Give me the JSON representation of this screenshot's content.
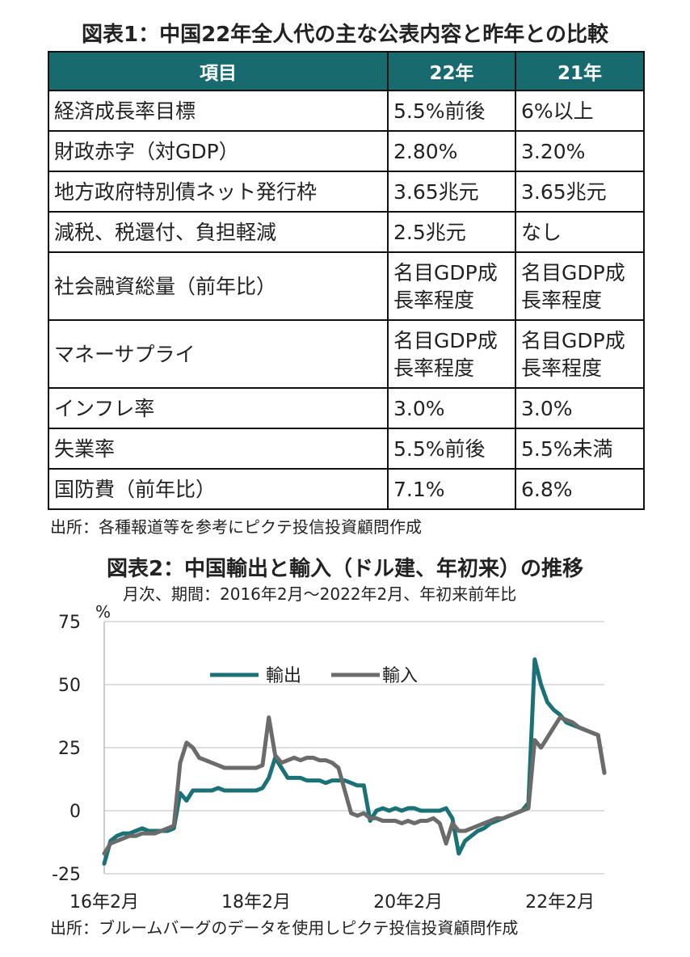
{
  "table": {
    "title": "図表1：中国22年全人代の主な公表内容と昨年との比較",
    "headers": [
      "項目",
      "22年",
      "21年"
    ],
    "rows": [
      [
        "経済成長率目標",
        "5.5%前後",
        "6%以上"
      ],
      [
        "財政赤字（対GDP）",
        "2.80%",
        "3.20%"
      ],
      [
        "地方政府特別債ネット発行枠",
        "3.65兆元",
        "3.65兆元"
      ],
      [
        "減税、税還付、負担軽減",
        "2.5兆元",
        "なし"
      ],
      [
        "社会融資総量（前年比）",
        "名目GDP成長率程度",
        "名目GDP成長率程度"
      ],
      [
        "マネーサプライ",
        "名目GDP成長率程度",
        "名目GDP成長率程度"
      ],
      [
        "インフレ率",
        "3.0%",
        "3.0%"
      ],
      [
        "失業率",
        "5.5%前後",
        "5.5%未満"
      ],
      [
        "国防費（前年比）",
        "7.1%",
        "6.8%"
      ]
    ],
    "source": "出所：各種報道等を参考にピクテ投信投資顧問作成"
  },
  "chart_data": {
    "type": "line",
    "title": "図表2：中国輸出と輸入（ドル建、年初来）の推移",
    "subtitle": "月次、期間：2016年2月～2022年2月、年初来前年比",
    "ylabel": "%",
    "ylim": [
      -25,
      75
    ],
    "yticks": [
      "75",
      "50",
      "25",
      "0",
      "-25"
    ],
    "xticks": [
      "16年2月",
      "18年2月",
      "20年2月",
      "22年2月"
    ],
    "grid": true,
    "legend_position": "top-center",
    "source": "出所：ブルームバーグのデータを使用しピクテ投信投資顧問作成",
    "series": [
      {
        "name": "輸出",
        "color": "#1b7276",
        "values": [
          -21,
          -12,
          -10,
          -9,
          -9,
          -8,
          -7,
          -8,
          -8,
          -8,
          -8,
          -7,
          7,
          4,
          8,
          8,
          8,
          8,
          9,
          8,
          8,
          8,
          8,
          8,
          8,
          9,
          13,
          21,
          17,
          13,
          13,
          13,
          12,
          12,
          12,
          11,
          12,
          12,
          12,
          11,
          10,
          10,
          -4,
          0,
          1,
          0,
          1,
          0,
          1,
          1,
          0,
          0,
          0,
          0,
          1,
          -3,
          -17,
          -12,
          -10,
          -8,
          -7,
          -5,
          -4,
          -3,
          -2,
          -1,
          0,
          3,
          60,
          50,
          43,
          40,
          38,
          35,
          34,
          33,
          32,
          31,
          30,
          15
        ]
      },
      {
        "name": "輸入",
        "color": "#6b6b6b",
        "values": [
          -17,
          -13,
          -12,
          -11,
          -10,
          -10,
          -9,
          -9,
          -9,
          -8,
          -7,
          -6,
          19,
          27,
          25,
          21,
          20,
          19,
          18,
          17,
          17,
          17,
          17,
          17,
          17,
          18,
          37,
          22,
          19,
          20,
          21,
          20,
          21,
          21,
          20,
          20,
          19,
          17,
          8,
          -1,
          -2,
          -1,
          -3,
          -3,
          -4,
          -4,
          -4,
          -5,
          -4,
          -5,
          -4,
          -4,
          -3,
          -5,
          -13,
          -5,
          -8,
          -8,
          -7,
          -6,
          -5,
          -4,
          -3,
          -3,
          -2,
          -1,
          0,
          1,
          28,
          25,
          29,
          33,
          37,
          36,
          35,
          33,
          32,
          31,
          30,
          15
        ]
      }
    ]
  }
}
